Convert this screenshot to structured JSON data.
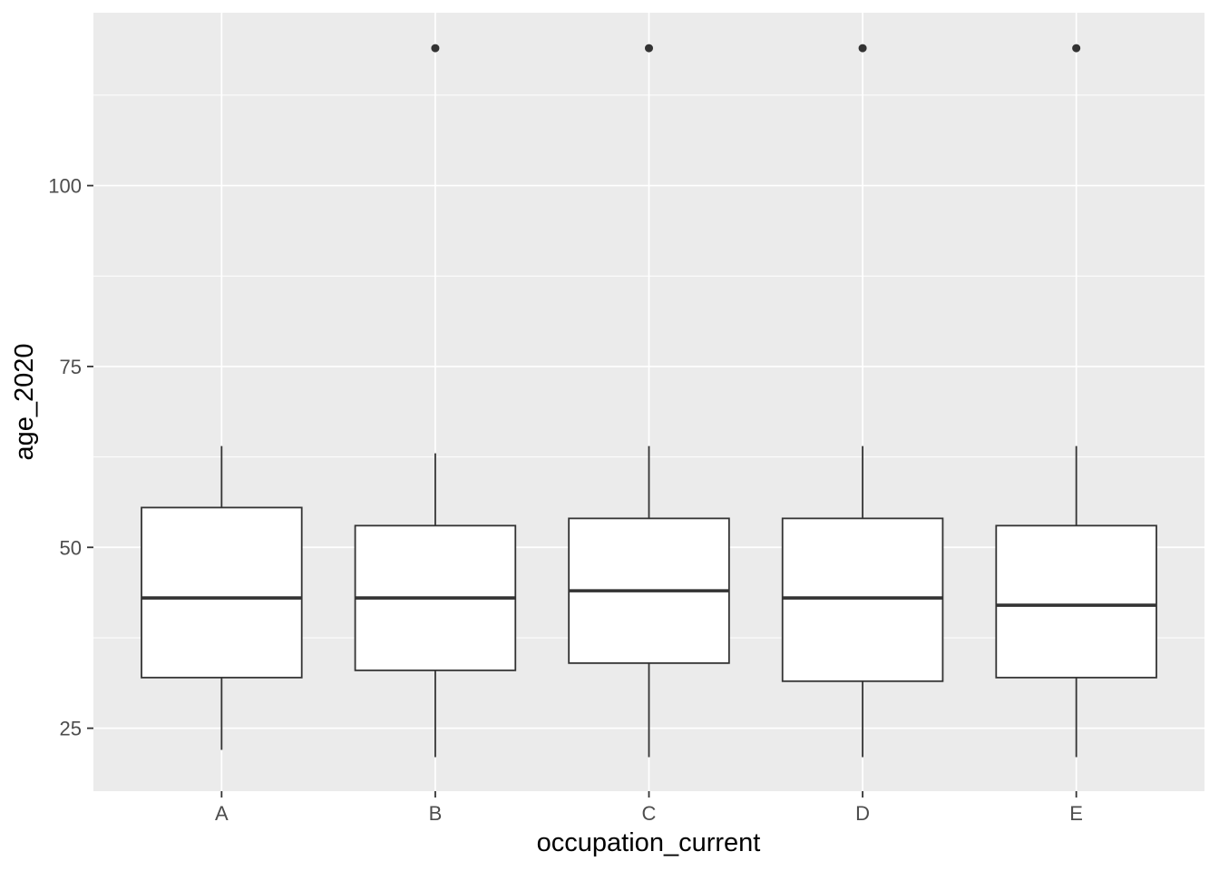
{
  "figure": {
    "background": "#FFFFFF"
  },
  "chart_data": {
    "type": "boxplot",
    "title": "",
    "xlabel": "occupation_current",
    "ylabel": "age_2020",
    "categories": [
      "A",
      "B",
      "C",
      "D",
      "E"
    ],
    "y_axis": {
      "tick_labels": [
        "25",
        "50",
        "75",
        "100"
      ],
      "tick_values": [
        25,
        50,
        75,
        100
      ],
      "minor_tick_values": [
        37.5,
        62.5,
        87.5,
        112.5
      ],
      "range_shown": [
        16.3,
        123.9
      ]
    },
    "series": [
      {
        "category": "A",
        "whisker_low": 22,
        "q1": 32,
        "median": 43,
        "q3": 55.5,
        "whisker_high": 64,
        "outliers": []
      },
      {
        "category": "B",
        "whisker_low": 21,
        "q1": 33,
        "median": 43,
        "q3": 53,
        "whisker_high": 63,
        "outliers": [
          119
        ]
      },
      {
        "category": "C",
        "whisker_low": 21,
        "q1": 34,
        "median": 44,
        "q3": 54,
        "whisker_high": 64,
        "outliers": [
          119
        ]
      },
      {
        "category": "D",
        "whisker_low": 21,
        "q1": 31.5,
        "median": 43,
        "q3": 54,
        "whisker_high": 64,
        "outliers": [
          119
        ]
      },
      {
        "category": "E",
        "whisker_low": 21,
        "q1": 32,
        "median": 42,
        "q3": 53,
        "whisker_high": 64,
        "outliers": [
          119
        ]
      }
    ],
    "legend": "none",
    "grid": {
      "horizontal_major": true,
      "horizontal_minor": true,
      "vertical_major": true,
      "vertical_minor": false
    },
    "colors": {
      "panel_background": "#EBEBEB",
      "gridline": "#FFFFFF",
      "box_stroke": "#333333",
      "box_fill": "#FFFFFF",
      "median": "#333333",
      "outlier": "#333333",
      "tick_mark": "#333333",
      "tick_label": "#4D4D4D",
      "axis_title": "#000000"
    }
  }
}
